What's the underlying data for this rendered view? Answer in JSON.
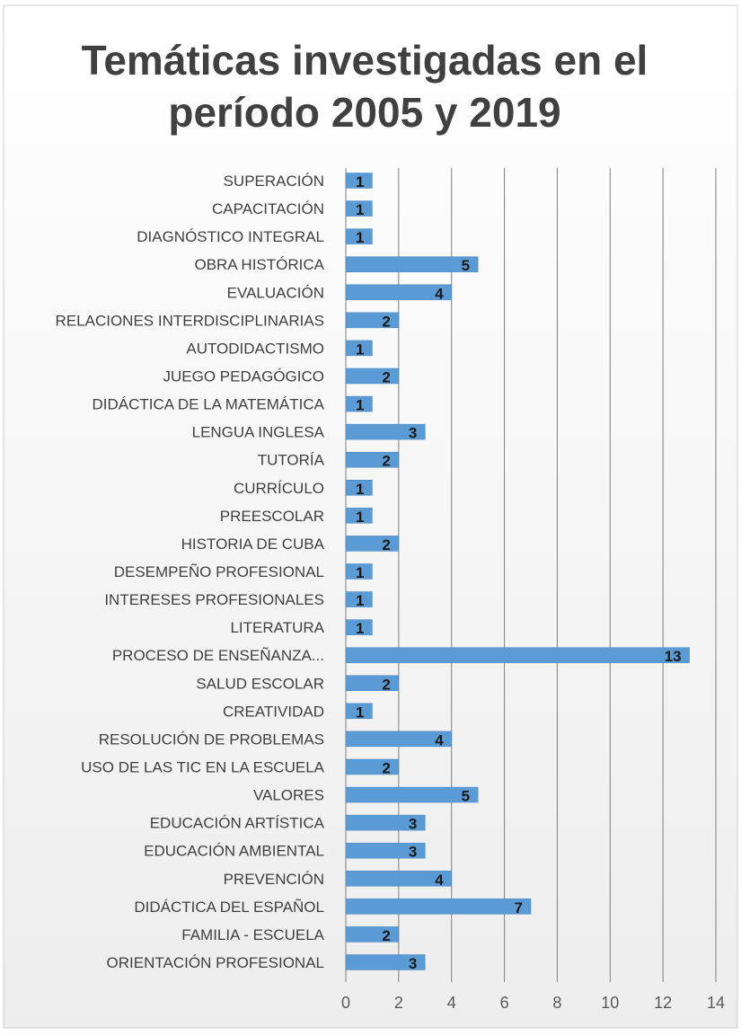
{
  "chart_data": {
    "type": "bar",
    "orientation": "horizontal",
    "title_lines": [
      "Temáticas investigadas en el",
      "período 2005 y 2019"
    ],
    "categories": [
      "SUPERACIÓN",
      "CAPACITACIÓN",
      "DIAGNÓSTICO INTEGRAL",
      "OBRA HISTÓRICA",
      "EVALUACIÓN",
      "RELACIONES INTERDISCIPLINARIAS",
      "AUTODIDACTISMO",
      "JUEGO PEDAGÓGICO",
      "DIDÁCTICA DE LA MATEMÁTICA",
      "LENGUA INGLESA",
      "TUTORÍA",
      "CURRÍCULO",
      "PREESCOLAR",
      "HISTORIA DE CUBA",
      "DESEMPEÑO PROFESIONAL",
      "INTERESES PROFESIONALES",
      "LITERATURA",
      "PROCESO DE ENSEÑANZA...",
      "SALUD ESCOLAR",
      "CREATIVIDAD",
      "RESOLUCIÓN DE PROBLEMAS",
      "USO DE LAS TIC EN LA ESCUELA",
      "VALORES",
      "EDUCACIÓN ARTÍSTICA",
      "EDUCACIÓN AMBIENTAL",
      "PREVENCIÓN",
      "DIDÁCTICA DEL ESPAÑOL",
      "FAMILIA - ESCUELA",
      "ORIENTACIÓN PROFESIONAL"
    ],
    "values": [
      1,
      1,
      1,
      5,
      4,
      2,
      1,
      2,
      1,
      3,
      2,
      1,
      1,
      2,
      1,
      1,
      1,
      13,
      2,
      1,
      4,
      2,
      5,
      3,
      3,
      4,
      7,
      2,
      3
    ],
    "xlim": [
      0,
      14
    ],
    "xticks": [
      0,
      2,
      4,
      6,
      8,
      10,
      12,
      14
    ],
    "xlabel": "",
    "ylabel": "",
    "grid": "vertical",
    "legend": "none",
    "data_labels": true
  },
  "colors": {
    "bar": "#5b9bd5",
    "bar_stroke": "#4a86c0",
    "gridline": "#7f7f7f",
    "label_text": "#404040",
    "data_label": "#1a1a1a",
    "tick_text": "#595959",
    "title": "#404040",
    "background_top": "#ffffff",
    "background_bottom": "#ededed",
    "border": "#cfcfcf"
  }
}
